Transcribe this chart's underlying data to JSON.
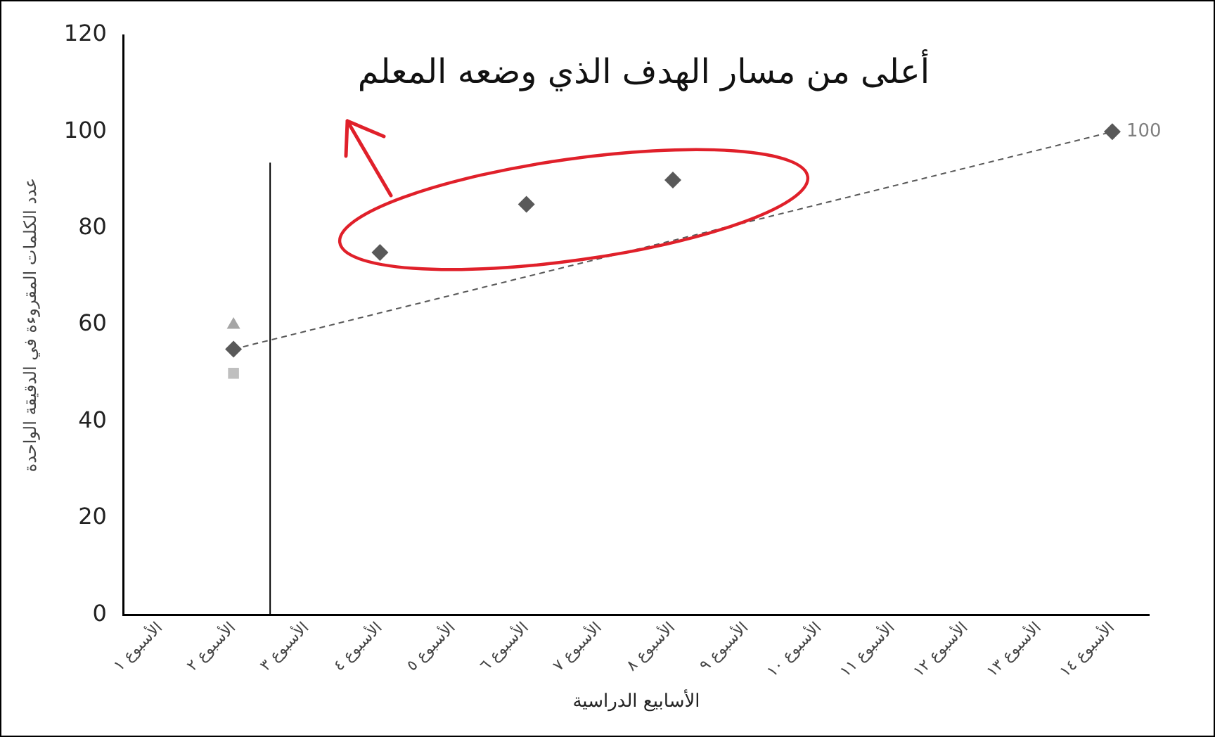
{
  "chart_data": {
    "type": "scatter",
    "xlabel": "الأسابيع الدراسية",
    "ylabel": "عدد الكلمات المقروءة في الدقيقة الواحدة",
    "annotations": [
      "أعلى من مسار الهدف الذي وضعه المعلم"
    ],
    "categories": [
      "الأسبوع ١",
      "الأسبوع ٢",
      "الأسبوع ٣",
      "الأسبوع ٤",
      "الأسبوع ٥",
      "الأسبوع ٦",
      "الأسبوع ٧",
      "الأسبوع ٨",
      "الأسبوع ٩",
      "الأسبوع ١٠",
      "الأسبوع ١١",
      "الأسبوع ١٢",
      "الأسبوع ١٣",
      "الأسبوع ١٤"
    ],
    "series": [
      {
        "type": "line",
        "color": "#595959",
        "line_style": "dashed",
        "marker": "none",
        "values": [
          null,
          55,
          null,
          null,
          null,
          null,
          null,
          null,
          null,
          null,
          null,
          null,
          null,
          100
        ]
      },
      {
        "type": "scatter",
        "color": "#a5a5a5",
        "marker": "triangle",
        "values": [
          null,
          60,
          null,
          null,
          null,
          null,
          null,
          null,
          null,
          null,
          null,
          null,
          null,
          null
        ]
      },
      {
        "type": "scatter",
        "color": "#bfbfbf",
        "marker": "square",
        "values": [
          null,
          50,
          null,
          null,
          null,
          null,
          null,
          null,
          null,
          null,
          null,
          null,
          null,
          null
        ]
      },
      {
        "type": "scatter",
        "color": "#595959",
        "marker": "diamond",
        "values": [
          null,
          55,
          null,
          75,
          null,
          85,
          null,
          90,
          null,
          null,
          null,
          null,
          null,
          100
        ],
        "value_labels": [
          null,
          null,
          null,
          null,
          null,
          null,
          null,
          null,
          null,
          null,
          null,
          null,
          null,
          "100"
        ]
      }
    ],
    "ylim": [
      0,
      120
    ],
    "yticks": [
      0,
      20,
      40,
      60,
      80,
      100,
      120
    ],
    "legend": false,
    "grid": false
  }
}
